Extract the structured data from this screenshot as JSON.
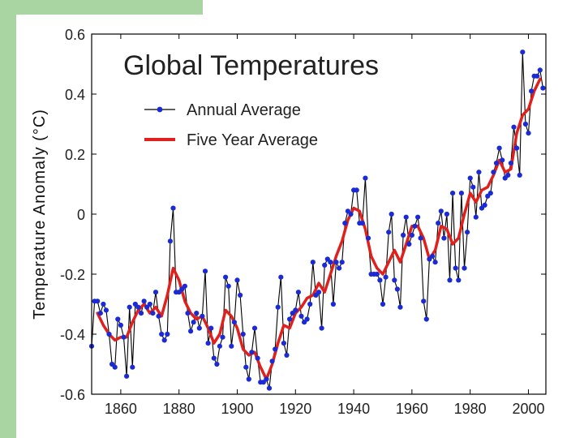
{
  "slide": {
    "accent_color": "#a8d5a2"
  },
  "chart_data": {
    "type": "line",
    "title": "Global Temperatures",
    "xlabel": "",
    "ylabel": "Temperature Anomaly (°C)",
    "xlim": [
      1850,
      2006
    ],
    "ylim": [
      -0.6,
      0.6
    ],
    "x_ticks": [
      "1860",
      "1880",
      "1900",
      "1920",
      "1940",
      "1960",
      "1980",
      "2000"
    ],
    "x_tick_values": [
      1860,
      1880,
      1900,
      1920,
      1940,
      1960,
      1980,
      2000
    ],
    "y_ticks": [
      "0.6",
      "0.4",
      "0.2",
      "0",
      "-0.2",
      "-0.4",
      "-0.6"
    ],
    "y_tick_values": [
      0.6,
      0.4,
      0.2,
      0,
      -0.2,
      -0.4,
      -0.6
    ],
    "legend": {
      "position": "top-left",
      "entries": [
        "Annual Average",
        "Five Year Average"
      ]
    },
    "series": [
      {
        "name": "Annual Average",
        "color": "#000000",
        "marker_color": "#1a2bd6",
        "x": [
          1850,
          1851,
          1852,
          1853,
          1854,
          1855,
          1856,
          1857,
          1858,
          1859,
          1860,
          1861,
          1862,
          1863,
          1864,
          1865,
          1866,
          1867,
          1868,
          1869,
          1870,
          1871,
          1872,
          1873,
          1874,
          1875,
          1876,
          1877,
          1878,
          1879,
          1880,
          1881,
          1882,
          1883,
          1884,
          1885,
          1886,
          1887,
          1888,
          1889,
          1890,
          1891,
          1892,
          1893,
          1894,
          1895,
          1896,
          1897,
          1898,
          1899,
          1900,
          1901,
          1902,
          1903,
          1904,
          1905,
          1906,
          1907,
          1908,
          1909,
          1910,
          1911,
          1912,
          1913,
          1914,
          1915,
          1916,
          1917,
          1918,
          1919,
          1920,
          1921,
          1922,
          1923,
          1924,
          1925,
          1926,
          1927,
          1928,
          1929,
          1930,
          1931,
          1932,
          1933,
          1934,
          1935,
          1936,
          1937,
          1938,
          1939,
          1940,
          1941,
          1942,
          1943,
          1944,
          1945,
          1946,
          1947,
          1948,
          1949,
          1950,
          1951,
          1952,
          1953,
          1954,
          1955,
          1956,
          1957,
          1958,
          1959,
          1960,
          1961,
          1962,
          1963,
          1964,
          1965,
          1966,
          1967,
          1968,
          1969,
          1970,
          1971,
          1972,
          1973,
          1974,
          1975,
          1976,
          1977,
          1978,
          1979,
          1980,
          1981,
          1982,
          1983,
          1984,
          1985,
          1986,
          1987,
          1988,
          1989,
          1990,
          1991,
          1992,
          1993,
          1994,
          1995,
          1996,
          1997,
          1998,
          1999,
          2000,
          2001,
          2002,
          2003,
          2004,
          2005
        ],
        "values": [
          -0.44,
          -0.29,
          -0.29,
          -0.33,
          -0.3,
          -0.32,
          -0.4,
          -0.5,
          -0.51,
          -0.35,
          -0.37,
          -0.41,
          -0.54,
          -0.31,
          -0.51,
          -0.3,
          -0.31,
          -0.33,
          -0.29,
          -0.31,
          -0.3,
          -0.33,
          -0.26,
          -0.34,
          -0.4,
          -0.42,
          -0.4,
          -0.09,
          0.02,
          -0.26,
          -0.26,
          -0.25,
          -0.24,
          -0.33,
          -0.39,
          -0.36,
          -0.33,
          -0.38,
          -0.34,
          -0.19,
          -0.43,
          -0.38,
          -0.48,
          -0.5,
          -0.44,
          -0.41,
          -0.21,
          -0.24,
          -0.44,
          -0.36,
          -0.22,
          -0.27,
          -0.4,
          -0.51,
          -0.55,
          -0.46,
          -0.38,
          -0.48,
          -0.56,
          -0.56,
          -0.55,
          -0.58,
          -0.49,
          -0.45,
          -0.31,
          -0.21,
          -0.43,
          -0.47,
          -0.35,
          -0.33,
          -0.32,
          -0.26,
          -0.34,
          -0.36,
          -0.35,
          -0.3,
          -0.16,
          -0.27,
          -0.26,
          -0.38,
          -0.17,
          -0.15,
          -0.16,
          -0.3,
          -0.16,
          -0.18,
          -0.16,
          -0.03,
          0.01,
          0.0,
          0.08,
          0.08,
          -0.03,
          -0.03,
          0.12,
          -0.08,
          -0.2,
          -0.2,
          -0.2,
          -0.22,
          -0.3,
          -0.21,
          -0.06,
          0.0,
          -0.22,
          -0.25,
          -0.31,
          -0.07,
          -0.01,
          -0.1,
          -0.07,
          -0.04,
          -0.01,
          -0.08,
          -0.29,
          -0.35,
          -0.15,
          -0.14,
          -0.16,
          -0.03,
          0.01,
          -0.08,
          0.0,
          -0.22,
          0.07,
          -0.18,
          -0.22,
          0.07,
          -0.18,
          -0.06,
          0.12,
          0.09,
          -0.01,
          0.14,
          0.02,
          0.03,
          0.06,
          0.07,
          0.14,
          0.17,
          0.22,
          0.18,
          0.12,
          0.13,
          0.17,
          0.29,
          0.22,
          0.13,
          0.54,
          0.3,
          0.27,
          0.41,
          0.46,
          0.46,
          0.48,
          0.42
        ]
      },
      {
        "name": "Five Year Average",
        "color": "#e0201c",
        "x": [
          1852,
          1854,
          1856,
          1858,
          1860,
          1862,
          1864,
          1866,
          1868,
          1870,
          1872,
          1874,
          1876,
          1878,
          1880,
          1882,
          1884,
          1886,
          1888,
          1890,
          1892,
          1894,
          1896,
          1898,
          1900,
          1902,
          1904,
          1906,
          1908,
          1910,
          1912,
          1914,
          1916,
          1918,
          1920,
          1922,
          1924,
          1926,
          1928,
          1930,
          1932,
          1934,
          1936,
          1938,
          1940,
          1942,
          1944,
          1946,
          1948,
          1950,
          1952,
          1954,
          1956,
          1958,
          1960,
          1962,
          1964,
          1966,
          1968,
          1970,
          1972,
          1974,
          1976,
          1978,
          1980,
          1982,
          1984,
          1986,
          1988,
          1990,
          1992,
          1994,
          1996,
          1998,
          2000,
          2002,
          2004
        ],
        "values": [
          -0.33,
          -0.37,
          -0.4,
          -0.42,
          -0.41,
          -0.41,
          -0.36,
          -0.32,
          -0.3,
          -0.33,
          -0.31,
          -0.34,
          -0.27,
          -0.18,
          -0.22,
          -0.29,
          -0.33,
          -0.35,
          -0.34,
          -0.38,
          -0.43,
          -0.4,
          -0.32,
          -0.34,
          -0.38,
          -0.45,
          -0.47,
          -0.46,
          -0.51,
          -0.55,
          -0.5,
          -0.43,
          -0.37,
          -0.38,
          -0.33,
          -0.31,
          -0.28,
          -0.27,
          -0.23,
          -0.26,
          -0.2,
          -0.14,
          -0.09,
          -0.02,
          0.02,
          0.01,
          -0.05,
          -0.14,
          -0.18,
          -0.2,
          -0.16,
          -0.12,
          -0.16,
          -0.1,
          -0.04,
          -0.04,
          -0.08,
          -0.15,
          -0.12,
          -0.04,
          -0.05,
          -0.1,
          -0.08,
          0.0,
          0.07,
          0.04,
          0.08,
          0.09,
          0.13,
          0.18,
          0.14,
          0.15,
          0.27,
          0.33,
          0.35,
          0.41,
          0.45
        ]
      }
    ]
  }
}
